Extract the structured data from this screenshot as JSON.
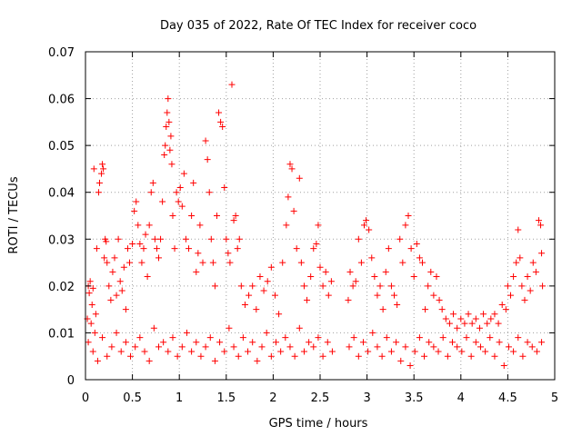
{
  "chart_data": {
    "type": "scatter",
    "title": "Day 035 of 2022, Rate Of TEC Index for receiver coco",
    "xlabel": "GPS time / hours",
    "ylabel": "ROTI / TECUs",
    "xlim": [
      0,
      5
    ],
    "ylim": [
      0,
      0.07
    ],
    "x_ticks": [
      {
        "value": 0,
        "label": "0"
      },
      {
        "value": 0.5,
        "label": "0.5"
      },
      {
        "value": 1,
        "label": "1"
      },
      {
        "value": 1.5,
        "label": "1.5"
      },
      {
        "value": 2,
        "label": "2"
      },
      {
        "value": 2.5,
        "label": "2.5"
      },
      {
        "value": 3,
        "label": "3"
      },
      {
        "value": 3.5,
        "label": "3.5"
      },
      {
        "value": 4,
        "label": "4"
      },
      {
        "value": 4.5,
        "label": "4.5"
      },
      {
        "value": 5,
        "label": "5"
      }
    ],
    "y_ticks": [
      {
        "value": 0,
        "label": "0"
      },
      {
        "value": 0.01,
        "label": "0.01"
      },
      {
        "value": 0.02,
        "label": "0.02"
      },
      {
        "value": 0.03,
        "label": "0.03"
      },
      {
        "value": 0.04,
        "label": "0.04"
      },
      {
        "value": 0.05,
        "label": "0.05"
      },
      {
        "value": 0.06,
        "label": "0.06"
      },
      {
        "value": 0.07,
        "label": "0.07"
      }
    ],
    "grid": true,
    "marker": "+",
    "color": "#ff0000",
    "series": [
      {
        "name": "ROTI",
        "points": [
          [
            0.02,
            0.013
          ],
          [
            0.03,
            0.02
          ],
          [
            0.04,
            0.0185
          ],
          [
            0.05,
            0.021
          ],
          [
            0.06,
            0.012
          ],
          [
            0.07,
            0.016
          ],
          [
            0.08,
            0.0195
          ],
          [
            0.09,
            0.045
          ],
          [
            0.1,
            0.01
          ],
          [
            0.11,
            0.014
          ],
          [
            0.12,
            0.028
          ],
          [
            0.14,
            0.04
          ],
          [
            0.15,
            0.042
          ],
          [
            0.17,
            0.044
          ],
          [
            0.18,
            0.046
          ],
          [
            0.19,
            0.045
          ],
          [
            0.2,
            0.026
          ],
          [
            0.21,
            0.03
          ],
          [
            0.22,
            0.0295
          ],
          [
            0.23,
            0.025
          ],
          [
            0.25,
            0.02
          ],
          [
            0.27,
            0.017
          ],
          [
            0.29,
            0.023
          ],
          [
            0.31,
            0.026
          ],
          [
            0.33,
            0.018
          ],
          [
            0.35,
            0.03
          ],
          [
            0.37,
            0.021
          ],
          [
            0.39,
            0.019
          ],
          [
            0.41,
            0.024
          ],
          [
            0.43,
            0.015
          ],
          [
            0.45,
            0.028
          ],
          [
            0.47,
            0.025
          ],
          [
            0.5,
            0.029
          ],
          [
            0.52,
            0.036
          ],
          [
            0.54,
            0.038
          ],
          [
            0.56,
            0.033
          ],
          [
            0.58,
            0.029
          ],
          [
            0.6,
            0.025
          ],
          [
            0.62,
            0.028
          ],
          [
            0.64,
            0.031
          ],
          [
            0.66,
            0.022
          ],
          [
            0.68,
            0.033
          ],
          [
            0.7,
            0.04
          ],
          [
            0.72,
            0.042
          ],
          [
            0.74,
            0.03
          ],
          [
            0.76,
            0.028
          ],
          [
            0.78,
            0.026
          ],
          [
            0.8,
            0.03
          ],
          [
            0.82,
            0.038
          ],
          [
            0.84,
            0.048
          ],
          [
            0.85,
            0.05
          ],
          [
            0.86,
            0.054
          ],
          [
            0.87,
            0.057
          ],
          [
            0.88,
            0.06
          ],
          [
            0.89,
            0.055
          ],
          [
            0.9,
            0.049
          ],
          [
            0.91,
            0.052
          ],
          [
            0.92,
            0.046
          ],
          [
            0.93,
            0.035
          ],
          [
            0.95,
            0.028
          ],
          [
            0.97,
            0.04
          ],
          [
            0.99,
            0.038
          ],
          [
            1.01,
            0.041
          ],
          [
            1.03,
            0.037
          ],
          [
            1.05,
            0.044
          ],
          [
            1.07,
            0.03
          ],
          [
            1.1,
            0.028
          ],
          [
            1.13,
            0.035
          ],
          [
            1.15,
            0.042
          ],
          [
            1.18,
            0.023
          ],
          [
            1.2,
            0.027
          ],
          [
            1.22,
            0.033
          ],
          [
            1.25,
            0.025
          ],
          [
            1.28,
            0.051
          ],
          [
            1.3,
            0.047
          ],
          [
            1.32,
            0.04
          ],
          [
            1.34,
            0.03
          ],
          [
            1.36,
            0.025
          ],
          [
            1.38,
            0.02
          ],
          [
            1.4,
            0.035
          ],
          [
            1.42,
            0.057
          ],
          [
            1.44,
            0.055
          ],
          [
            1.46,
            0.054
          ],
          [
            1.48,
            0.041
          ],
          [
            1.5,
            0.03
          ],
          [
            1.52,
            0.027
          ],
          [
            1.54,
            0.025
          ],
          [
            1.56,
            0.063
          ],
          [
            1.58,
            0.034
          ],
          [
            1.6,
            0.035
          ],
          [
            1.62,
            0.028
          ],
          [
            1.64,
            0.03
          ],
          [
            1.66,
            0.02
          ],
          [
            1.7,
            0.016
          ],
          [
            1.74,
            0.018
          ],
          [
            1.78,
            0.02
          ],
          [
            1.82,
            0.015
          ],
          [
            1.86,
            0.022
          ],
          [
            1.9,
            0.019
          ],
          [
            1.94,
            0.021
          ],
          [
            1.98,
            0.024
          ],
          [
            2.02,
            0.018
          ],
          [
            2.06,
            0.014
          ],
          [
            2.1,
            0.025
          ],
          [
            2.14,
            0.033
          ],
          [
            2.16,
            0.039
          ],
          [
            2.18,
            0.046
          ],
          [
            2.2,
            0.045
          ],
          [
            2.22,
            0.036
          ],
          [
            2.25,
            0.028
          ],
          [
            2.28,
            0.043
          ],
          [
            2.3,
            0.025
          ],
          [
            2.33,
            0.02
          ],
          [
            2.36,
            0.017
          ],
          [
            2.4,
            0.022
          ],
          [
            2.43,
            0.028
          ],
          [
            2.46,
            0.029
          ],
          [
            2.48,
            0.033
          ],
          [
            2.5,
            0.024
          ],
          [
            2.53,
            0.02
          ],
          [
            2.56,
            0.023
          ],
          [
            2.59,
            0.018
          ],
          [
            2.62,
            0.021
          ],
          [
            2.8,
            0.017
          ],
          [
            2.82,
            0.023
          ],
          [
            2.85,
            0.02
          ],
          [
            2.88,
            0.021
          ],
          [
            2.91,
            0.03
          ],
          [
            2.94,
            0.025
          ],
          [
            2.97,
            0.033
          ],
          [
            2.99,
            0.034
          ],
          [
            3.02,
            0.032
          ],
          [
            3.05,
            0.026
          ],
          [
            3.08,
            0.022
          ],
          [
            3.11,
            0.018
          ],
          [
            3.14,
            0.02
          ],
          [
            3.17,
            0.015
          ],
          [
            3.2,
            0.023
          ],
          [
            3.23,
            0.028
          ],
          [
            3.26,
            0.02
          ],
          [
            3.29,
            0.018
          ],
          [
            3.32,
            0.016
          ],
          [
            3.35,
            0.03
          ],
          [
            3.38,
            0.025
          ],
          [
            3.41,
            0.033
          ],
          [
            3.44,
            0.035
          ],
          [
            3.47,
            0.028
          ],
          [
            3.5,
            0.022
          ],
          [
            3.53,
            0.029
          ],
          [
            3.56,
            0.026
          ],
          [
            3.59,
            0.025
          ],
          [
            3.62,
            0.015
          ],
          [
            3.65,
            0.02
          ],
          [
            3.68,
            0.023
          ],
          [
            3.71,
            0.018
          ],
          [
            3.74,
            0.022
          ],
          [
            3.77,
            0.017
          ],
          [
            3.8,
            0.015
          ],
          [
            3.84,
            0.013
          ],
          [
            3.88,
            0.012
          ],
          [
            3.92,
            0.014
          ],
          [
            3.96,
            0.011
          ],
          [
            4.0,
            0.013
          ],
          [
            4.04,
            0.012
          ],
          [
            4.08,
            0.014
          ],
          [
            4.12,
            0.012
          ],
          [
            4.16,
            0.013
          ],
          [
            4.2,
            0.011
          ],
          [
            4.24,
            0.014
          ],
          [
            4.28,
            0.012
          ],
          [
            4.32,
            0.013
          ],
          [
            4.36,
            0.014
          ],
          [
            4.4,
            0.012
          ],
          [
            4.44,
            0.016
          ],
          [
            4.48,
            0.015
          ],
          [
            4.5,
            0.02
          ],
          [
            4.53,
            0.018
          ],
          [
            4.56,
            0.022
          ],
          [
            4.59,
            0.025
          ],
          [
            4.61,
            0.032
          ],
          [
            4.63,
            0.026
          ],
          [
            4.65,
            0.02
          ],
          [
            4.68,
            0.017
          ],
          [
            4.71,
            0.022
          ],
          [
            4.74,
            0.019
          ],
          [
            4.77,
            0.025
          ],
          [
            4.8,
            0.023
          ],
          [
            4.83,
            0.034
          ],
          [
            4.85,
            0.033
          ],
          [
            4.86,
            0.027
          ],
          [
            4.87,
            0.02
          ],
          [
            0.03,
            0.008
          ],
          [
            0.08,
            0.006
          ],
          [
            0.13,
            0.004
          ],
          [
            0.18,
            0.009
          ],
          [
            0.23,
            0.005
          ],
          [
            0.28,
            0.007
          ],
          [
            0.33,
            0.01
          ],
          [
            0.38,
            0.006
          ],
          [
            0.43,
            0.008
          ],
          [
            0.48,
            0.005
          ],
          [
            0.53,
            0.007
          ],
          [
            0.58,
            0.009
          ],
          [
            0.63,
            0.006
          ],
          [
            0.68,
            0.004
          ],
          [
            0.73,
            0.011
          ],
          [
            0.78,
            0.007
          ],
          [
            0.83,
            0.008
          ],
          [
            0.88,
            0.006
          ],
          [
            0.93,
            0.009
          ],
          [
            0.98,
            0.005
          ],
          [
            1.03,
            0.007
          ],
          [
            1.08,
            0.01
          ],
          [
            1.13,
            0.006
          ],
          [
            1.18,
            0.008
          ],
          [
            1.23,
            0.005
          ],
          [
            1.28,
            0.007
          ],
          [
            1.33,
            0.009
          ],
          [
            1.38,
            0.004
          ],
          [
            1.43,
            0.008
          ],
          [
            1.48,
            0.006
          ],
          [
            1.53,
            0.011
          ],
          [
            1.58,
            0.007
          ],
          [
            1.63,
            0.005
          ],
          [
            1.68,
            0.009
          ],
          [
            1.73,
            0.006
          ],
          [
            1.78,
            0.008
          ],
          [
            1.83,
            0.004
          ],
          [
            1.88,
            0.007
          ],
          [
            1.93,
            0.01
          ],
          [
            1.98,
            0.005
          ],
          [
            2.03,
            0.008
          ],
          [
            2.08,
            0.006
          ],
          [
            2.13,
            0.009
          ],
          [
            2.18,
            0.007
          ],
          [
            2.23,
            0.005
          ],
          [
            2.28,
            0.011
          ],
          [
            2.33,
            0.006
          ],
          [
            2.38,
            0.008
          ],
          [
            2.43,
            0.007
          ],
          [
            2.48,
            0.009
          ],
          [
            2.53,
            0.005
          ],
          [
            2.58,
            0.008
          ],
          [
            2.63,
            0.006
          ],
          [
            2.81,
            0.007
          ],
          [
            2.86,
            0.009
          ],
          [
            2.91,
            0.005
          ],
          [
            2.96,
            0.008
          ],
          [
            3.01,
            0.006
          ],
          [
            3.06,
            0.01
          ],
          [
            3.11,
            0.007
          ],
          [
            3.16,
            0.005
          ],
          [
            3.21,
            0.009
          ],
          [
            3.26,
            0.006
          ],
          [
            3.31,
            0.008
          ],
          [
            3.36,
            0.004
          ],
          [
            3.41,
            0.007
          ],
          [
            3.46,
            0.003
          ],
          [
            3.51,
            0.006
          ],
          [
            3.56,
            0.009
          ],
          [
            3.61,
            0.005
          ],
          [
            3.66,
            0.008
          ],
          [
            3.71,
            0.007
          ],
          [
            3.76,
            0.006
          ],
          [
            3.81,
            0.009
          ],
          [
            3.86,
            0.005
          ],
          [
            3.91,
            0.008
          ],
          [
            3.96,
            0.007
          ],
          [
            4.01,
            0.006
          ],
          [
            4.06,
            0.009
          ],
          [
            4.11,
            0.005
          ],
          [
            4.16,
            0.008
          ],
          [
            4.21,
            0.007
          ],
          [
            4.26,
            0.006
          ],
          [
            4.31,
            0.009
          ],
          [
            4.36,
            0.005
          ],
          [
            4.41,
            0.008
          ],
          [
            4.46,
            0.003
          ],
          [
            4.51,
            0.007
          ],
          [
            4.56,
            0.006
          ],
          [
            4.61,
            0.009
          ],
          [
            4.66,
            0.005
          ],
          [
            4.71,
            0.008
          ],
          [
            4.76,
            0.007
          ],
          [
            4.81,
            0.006
          ],
          [
            4.86,
            0.008
          ]
        ]
      }
    ]
  }
}
